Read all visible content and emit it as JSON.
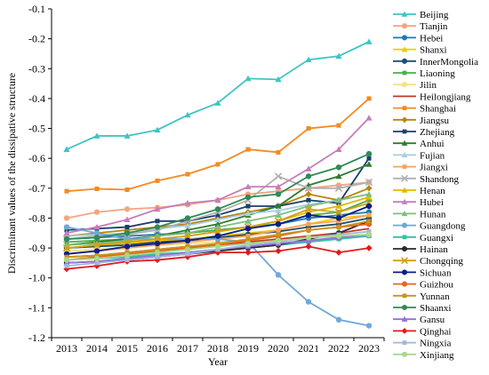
{
  "chart_data": {
    "type": "line",
    "title": "",
    "xlabel": "Year",
    "ylabel": "Discriminant values of the dissipative structure",
    "ylim": [
      -1.2,
      -0.1
    ],
    "yticks": [
      -0.1,
      -0.2,
      -0.3,
      -0.4,
      -0.5,
      -0.6,
      -0.7,
      -0.8,
      -0.9,
      -1.0,
      -1.1,
      -1.2
    ],
    "ytick_labels": [
      "-0.1",
      "-0.2",
      "-0.3",
      "-0.4",
      "-0.5",
      "-0.6",
      "-0.7",
      "-0.8",
      "-0.9",
      "-1.0",
      "-1.1",
      "-1.2"
    ],
    "x": [
      "2013",
      "2014",
      "2015",
      "2016",
      "2017",
      "2018",
      "2019",
      "2020",
      "2021",
      "2022",
      "2023"
    ],
    "grid": false,
    "legend_position": "right",
    "series": [
      {
        "name": "Beijing",
        "color": "#40c4c4",
        "marker": "triangle",
        "values": [
          -0.57,
          -0.525,
          -0.525,
          -0.505,
          -0.455,
          -0.415,
          -0.333,
          -0.336,
          -0.27,
          -0.258,
          -0.21
        ]
      },
      {
        "name": "Tianjin",
        "color": "#f4a582",
        "marker": "circle",
        "values": [
          -0.8,
          -0.78,
          -0.77,
          -0.765,
          -0.755,
          -0.74,
          -0.72,
          -0.71,
          -0.7,
          -0.69,
          -0.68
        ]
      },
      {
        "name": "Hebei",
        "color": "#1f78b4",
        "marker": "circle",
        "values": [
          -0.87,
          -0.865,
          -0.86,
          -0.855,
          -0.85,
          -0.84,
          -0.83,
          -0.82,
          -0.8,
          -0.79,
          -0.78
        ]
      },
      {
        "name": "Shanxi",
        "color": "#f9c800",
        "marker": "triangle",
        "values": [
          -0.9,
          -0.89,
          -0.885,
          -0.875,
          -0.87,
          -0.86,
          -0.85,
          -0.84,
          -0.82,
          -0.8,
          -0.79
        ]
      },
      {
        "name": "InnerMongolia",
        "color": "#1b4f72",
        "marker": "circle",
        "values": [
          -0.9,
          -0.895,
          -0.89,
          -0.88,
          -0.875,
          -0.865,
          -0.855,
          -0.845,
          -0.83,
          -0.82,
          -0.8
        ]
      },
      {
        "name": "Liaoning",
        "color": "#4daf4a",
        "marker": "square",
        "values": [
          -0.88,
          -0.875,
          -0.87,
          -0.86,
          -0.85,
          -0.84,
          -0.83,
          -0.82,
          -0.79,
          -0.78,
          -0.74
        ]
      },
      {
        "name": "Jilin",
        "color": "#f7e08a",
        "marker": "circle",
        "values": [
          -0.91,
          -0.905,
          -0.9,
          -0.89,
          -0.885,
          -0.88,
          -0.875,
          -0.87,
          -0.865,
          -0.86,
          -0.855
        ]
      },
      {
        "name": "Heilongjiang",
        "color": "#c0392b",
        "marker": "none",
        "values": [
          -0.93,
          -0.925,
          -0.915,
          -0.905,
          -0.895,
          -0.89,
          -0.88,
          -0.87,
          -0.86,
          -0.85,
          -0.835
        ]
      },
      {
        "name": "Shanghai",
        "color": "#f58a1f",
        "marker": "square",
        "values": [
          -0.71,
          -0.702,
          -0.705,
          -0.675,
          -0.653,
          -0.62,
          -0.57,
          -0.58,
          -0.5,
          -0.49,
          -0.4
        ]
      },
      {
        "name": "Jiangsu",
        "color": "#b8860b",
        "marker": "diamond",
        "values": [
          -0.86,
          -0.85,
          -0.84,
          -0.83,
          -0.82,
          -0.8,
          -0.78,
          -0.76,
          -0.72,
          -0.74,
          -0.7
        ]
      },
      {
        "name": "Zhejiang",
        "color": "#1a3e6e",
        "marker": "square",
        "values": [
          -0.84,
          -0.835,
          -0.83,
          -0.81,
          -0.81,
          -0.79,
          -0.76,
          -0.76,
          -0.74,
          -0.75,
          -0.6
        ]
      },
      {
        "name": "Anhui",
        "color": "#2e7d32",
        "marker": "triangle",
        "values": [
          -0.89,
          -0.88,
          -0.87,
          -0.86,
          -0.84,
          -0.82,
          -0.79,
          -0.76,
          -0.69,
          -0.66,
          -0.62
        ]
      },
      {
        "name": "Fujian",
        "color": "#a6cee3",
        "marker": "triangle",
        "values": [
          -0.86,
          -0.855,
          -0.85,
          -0.835,
          -0.825,
          -0.805,
          -0.785,
          -0.775,
          -0.755,
          -0.74,
          -0.72
        ]
      },
      {
        "name": "Jiangxi",
        "color": "#f4a460",
        "marker": "square",
        "values": [
          -0.92,
          -0.91,
          -0.9,
          -0.89,
          -0.88,
          -0.87,
          -0.86,
          -0.84,
          -0.82,
          -0.81,
          -0.79
        ]
      },
      {
        "name": "Shandong",
        "color": "#b0b0b0",
        "marker": "cross",
        "values": [
          -0.87,
          -0.86,
          -0.855,
          -0.84,
          -0.81,
          -0.78,
          -0.74,
          -0.66,
          -0.7,
          -0.7,
          -0.68
        ]
      },
      {
        "name": "Henan",
        "color": "#e6b800",
        "marker": "triangle",
        "values": [
          -0.9,
          -0.89,
          -0.88,
          -0.87,
          -0.86,
          -0.845,
          -0.83,
          -0.81,
          -0.78,
          -0.76,
          -0.73
        ]
      },
      {
        "name": "Hubei",
        "color": "#c77dbb",
        "marker": "triangle",
        "values": [
          -0.85,
          -0.83,
          -0.805,
          -0.77,
          -0.75,
          -0.74,
          -0.695,
          -0.695,
          -0.635,
          -0.57,
          -0.465
        ]
      },
      {
        "name": "Hunan",
        "color": "#7fbf7f",
        "marker": "triangle",
        "values": [
          -0.89,
          -0.885,
          -0.875,
          -0.86,
          -0.85,
          -0.83,
          -0.81,
          -0.79,
          -0.76,
          -0.74,
          -0.72
        ]
      },
      {
        "name": "Guangdong",
        "color": "#6fa8dc",
        "marker": "circle",
        "values": [
          -0.83,
          -0.85,
          -0.87,
          -0.87,
          -0.87,
          -0.87,
          -0.88,
          -0.99,
          -1.08,
          -1.14,
          -1.16
        ]
      },
      {
        "name": "Guangxi",
        "color": "#33c2a0",
        "marker": "square",
        "values": [
          -0.94,
          -0.935,
          -0.93,
          -0.92,
          -0.915,
          -0.905,
          -0.9,
          -0.89,
          -0.88,
          -0.87,
          -0.86
        ]
      },
      {
        "name": "Hainan",
        "color": "#2a2a2a",
        "marker": "circle",
        "values": [
          -0.95,
          -0.945,
          -0.94,
          -0.93,
          -0.92,
          -0.91,
          -0.9,
          -0.89,
          -0.87,
          -0.85,
          -0.81
        ]
      },
      {
        "name": "Chongqing",
        "color": "#d4a017",
        "marker": "cross",
        "values": [
          -0.9,
          -0.89,
          -0.88,
          -0.87,
          -0.86,
          -0.845,
          -0.83,
          -0.81,
          -0.77,
          -0.78,
          -0.75
        ]
      },
      {
        "name": "Sichuan",
        "color": "#0b1f8a",
        "marker": "circle",
        "values": [
          -0.92,
          -0.91,
          -0.895,
          -0.885,
          -0.875,
          -0.86,
          -0.835,
          -0.82,
          -0.79,
          -0.8,
          -0.76
        ]
      },
      {
        "name": "Guizhou",
        "color": "#e8641e",
        "marker": "circle",
        "values": [
          -0.94,
          -0.93,
          -0.92,
          -0.91,
          -0.9,
          -0.89,
          -0.875,
          -0.86,
          -0.84,
          -0.83,
          -0.82
        ]
      },
      {
        "name": "Yunnan",
        "color": "#c8951f",
        "marker": "square",
        "values": [
          -0.93,
          -0.925,
          -0.915,
          -0.905,
          -0.895,
          -0.885,
          -0.87,
          -0.855,
          -0.84,
          -0.83,
          -0.81
        ]
      },
      {
        "name": "Shaanxi",
        "color": "#2e8b57",
        "marker": "circle",
        "values": [
          -0.87,
          -0.865,
          -0.85,
          -0.83,
          -0.8,
          -0.77,
          -0.73,
          -0.72,
          -0.66,
          -0.63,
          -0.585
        ]
      },
      {
        "name": "Gansu",
        "color": "#9370db",
        "marker": "triangle",
        "values": [
          -0.95,
          -0.945,
          -0.935,
          -0.925,
          -0.915,
          -0.905,
          -0.895,
          -0.885,
          -0.875,
          -0.865,
          -0.855
        ]
      },
      {
        "name": "Qinghai",
        "color": "#e31a1c",
        "marker": "diamond",
        "values": [
          -0.97,
          -0.96,
          -0.945,
          -0.94,
          -0.93,
          -0.915,
          -0.915,
          -0.91,
          -0.895,
          -0.915,
          -0.9
        ]
      },
      {
        "name": "Ningxia",
        "color": "#9fb8e0",
        "marker": "square",
        "values": [
          -0.96,
          -0.95,
          -0.94,
          -0.93,
          -0.92,
          -0.905,
          -0.89,
          -0.88,
          -0.865,
          -0.855,
          -0.845
        ]
      },
      {
        "name": "Xinjiang",
        "color": "#a8d88a",
        "marker": "circle",
        "values": [
          -0.94,
          -0.935,
          -0.925,
          -0.915,
          -0.905,
          -0.895,
          -0.885,
          -0.875,
          -0.865,
          -0.86,
          -0.855
        ]
      }
    ]
  }
}
